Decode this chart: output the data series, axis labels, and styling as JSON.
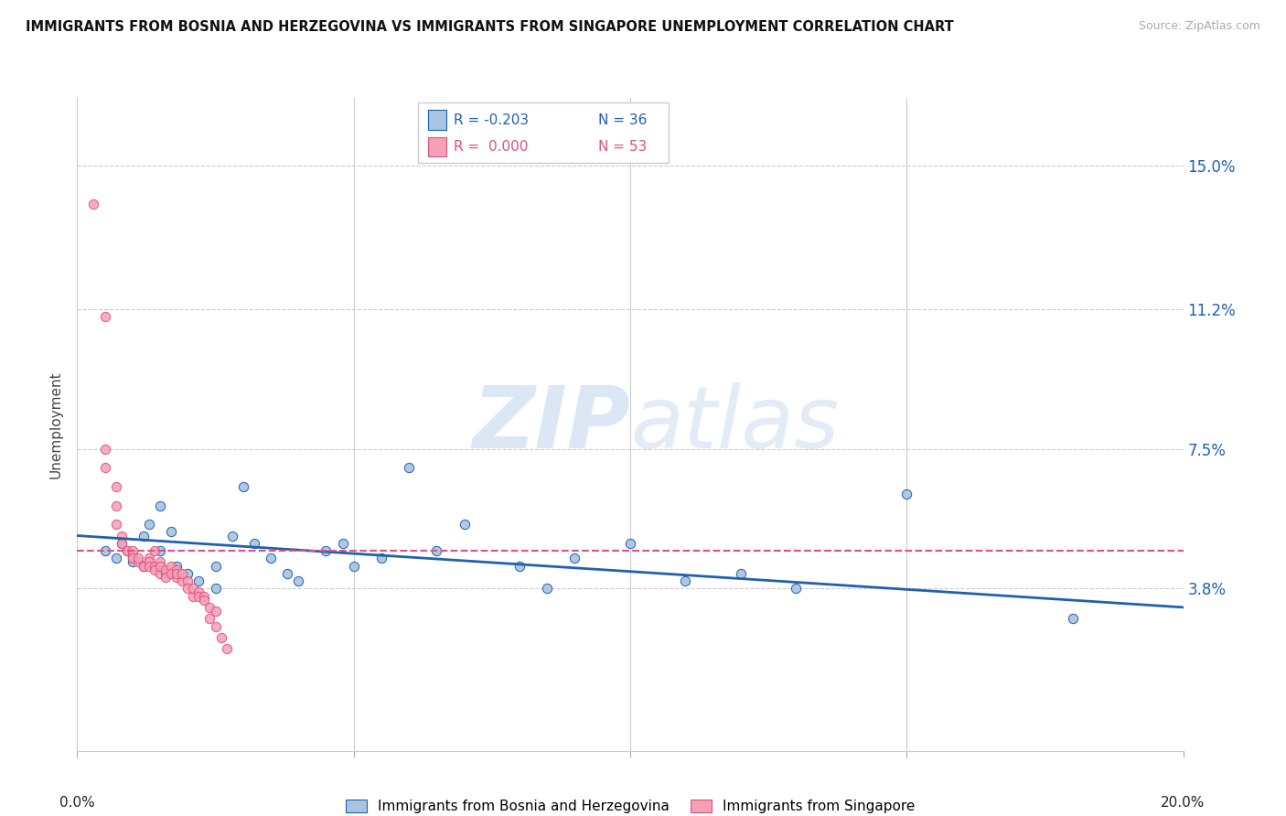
{
  "title": "IMMIGRANTS FROM BOSNIA AND HERZEGOVINA VS IMMIGRANTS FROM SINGAPORE UNEMPLOYMENT CORRELATION CHART",
  "source": "Source: ZipAtlas.com",
  "ylabel": "Unemployment",
  "ytick_labels": [
    "15.0%",
    "11.2%",
    "7.5%",
    "3.8%"
  ],
  "ytick_values": [
    0.15,
    0.112,
    0.075,
    0.038
  ],
  "xlim": [
    0.0,
    0.2
  ],
  "ylim": [
    -0.005,
    0.168
  ],
  "legend_r_blue": "R = -0.203",
  "legend_n_blue": "N = 36",
  "legend_r_pink": "R =  0.000",
  "legend_n_pink": "N = 53",
  "legend_label_blue": "Immigrants from Bosnia and Herzegovina",
  "legend_label_pink": "Immigrants from Singapore",
  "watermark_zip": "ZIP",
  "watermark_atlas": "atlas",
  "blue_color": "#a8c4e0",
  "pink_color": "#f4a0b5",
  "trendline_blue_color": "#2060b0",
  "trendline_pink_color": "#e05080",
  "blue_scatter": [
    [
      0.005,
      0.048
    ],
    [
      0.007,
      0.046
    ],
    [
      0.008,
      0.05
    ],
    [
      0.01,
      0.045
    ],
    [
      0.012,
      0.052
    ],
    [
      0.013,
      0.055
    ],
    [
      0.015,
      0.06
    ],
    [
      0.015,
      0.048
    ],
    [
      0.017,
      0.053
    ],
    [
      0.018,
      0.044
    ],
    [
      0.02,
      0.042
    ],
    [
      0.022,
      0.04
    ],
    [
      0.025,
      0.044
    ],
    [
      0.025,
      0.038
    ],
    [
      0.028,
      0.052
    ],
    [
      0.03,
      0.065
    ],
    [
      0.032,
      0.05
    ],
    [
      0.035,
      0.046
    ],
    [
      0.038,
      0.042
    ],
    [
      0.04,
      0.04
    ],
    [
      0.045,
      0.048
    ],
    [
      0.048,
      0.05
    ],
    [
      0.05,
      0.044
    ],
    [
      0.055,
      0.046
    ],
    [
      0.06,
      0.07
    ],
    [
      0.065,
      0.048
    ],
    [
      0.07,
      0.055
    ],
    [
      0.08,
      0.044
    ],
    [
      0.085,
      0.038
    ],
    [
      0.09,
      0.046
    ],
    [
      0.1,
      0.05
    ],
    [
      0.11,
      0.04
    ],
    [
      0.12,
      0.042
    ],
    [
      0.13,
      0.038
    ],
    [
      0.15,
      0.063
    ],
    [
      0.18,
      0.03
    ]
  ],
  "pink_scatter": [
    [
      0.003,
      0.14
    ],
    [
      0.005,
      0.11
    ],
    [
      0.005,
      0.075
    ],
    [
      0.005,
      0.07
    ],
    [
      0.007,
      0.065
    ],
    [
      0.007,
      0.06
    ],
    [
      0.007,
      0.055
    ],
    [
      0.008,
      0.052
    ],
    [
      0.008,
      0.05
    ],
    [
      0.009,
      0.048
    ],
    [
      0.009,
      0.048
    ],
    [
      0.01,
      0.047
    ],
    [
      0.01,
      0.046
    ],
    [
      0.01,
      0.048
    ],
    [
      0.01,
      0.046
    ],
    [
      0.011,
      0.045
    ],
    [
      0.011,
      0.046
    ],
    [
      0.012,
      0.044
    ],
    [
      0.012,
      0.044
    ],
    [
      0.012,
      0.044
    ],
    [
      0.013,
      0.046
    ],
    [
      0.013,
      0.045
    ],
    [
      0.013,
      0.044
    ],
    [
      0.014,
      0.044
    ],
    [
      0.014,
      0.043
    ],
    [
      0.014,
      0.048
    ],
    [
      0.015,
      0.045
    ],
    [
      0.015,
      0.042
    ],
    [
      0.015,
      0.044
    ],
    [
      0.016,
      0.042
    ],
    [
      0.016,
      0.043
    ],
    [
      0.016,
      0.041
    ],
    [
      0.017,
      0.044
    ],
    [
      0.017,
      0.042
    ],
    [
      0.018,
      0.043
    ],
    [
      0.018,
      0.041
    ],
    [
      0.018,
      0.042
    ],
    [
      0.019,
      0.04
    ],
    [
      0.019,
      0.042
    ],
    [
      0.02,
      0.04
    ],
    [
      0.02,
      0.038
    ],
    [
      0.021,
      0.036
    ],
    [
      0.021,
      0.038
    ],
    [
      0.022,
      0.037
    ],
    [
      0.022,
      0.036
    ],
    [
      0.023,
      0.036
    ],
    [
      0.023,
      0.035
    ],
    [
      0.024,
      0.033
    ],
    [
      0.024,
      0.03
    ],
    [
      0.025,
      0.032
    ],
    [
      0.025,
      0.028
    ],
    [
      0.026,
      0.025
    ],
    [
      0.027,
      0.022
    ]
  ],
  "blue_trend_x": [
    0.0,
    0.2
  ],
  "blue_trend_y": [
    0.052,
    0.033
  ],
  "pink_trend_x": [
    0.0,
    0.2
  ],
  "pink_trend_y": [
    0.048,
    0.048
  ]
}
